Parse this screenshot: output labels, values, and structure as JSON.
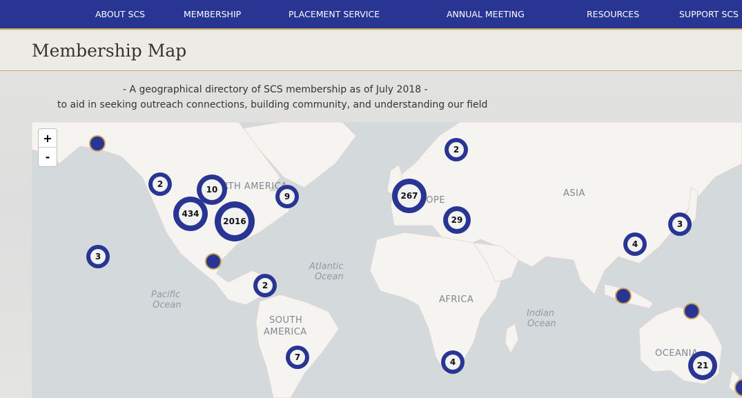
{
  "nav": {
    "items": [
      "ABOUT SCS",
      "MEMBERSHIP",
      "PLACEMENT SERVICE",
      "ANNUAL MEETING",
      "RESOURCES",
      "SUPPORT SCS"
    ]
  },
  "page": {
    "title": "Membership Map",
    "subtitle_line1": "- A geographical directory of SCS membership as of July 2018 -",
    "subtitle_line2": "to aid in seeking outreach connections, building community, and understanding our field"
  },
  "map": {
    "zoom_in": "+",
    "zoom_out": "-",
    "labels": {
      "north_america": "NORTH AMERICA",
      "south_america_1": "SOUTH",
      "south_america_2": "AMERICA",
      "europe": "EUROPE",
      "asia": "ASIA",
      "africa": "AFRICA",
      "oceania": "OCEANIA",
      "atlantic_1": "Atlantic",
      "atlantic_2": "Ocean",
      "pacific_1": "Pacific",
      "pacific_2": "Ocean",
      "indian_1": "Indian",
      "indian_2": "Ocean"
    },
    "clusters": [
      {
        "region": "pacific-northwest",
        "count": "2"
      },
      {
        "region": "midwest-canada",
        "count": "10"
      },
      {
        "region": "western-us",
        "count": "434"
      },
      {
        "region": "eastern-us",
        "count": "2016"
      },
      {
        "region": "atlantic-canada",
        "count": "9"
      },
      {
        "region": "hawaii",
        "count": "3"
      },
      {
        "region": "central-america",
        "count": "2"
      },
      {
        "region": "southern-south-america",
        "count": "7"
      },
      {
        "region": "scandinavia",
        "count": "2"
      },
      {
        "region": "western-europe",
        "count": "267"
      },
      {
        "region": "southeast-europe",
        "count": "29"
      },
      {
        "region": "southern-africa",
        "count": "4"
      },
      {
        "region": "east-asia",
        "count": "4"
      },
      {
        "region": "japan",
        "count": "3"
      },
      {
        "region": "australia",
        "count": "21"
      }
    ],
    "colors": {
      "marker": "#283593",
      "marker_ring": "#c9a45c",
      "land": "#f5f4f1",
      "water": "#d4dadc",
      "nav": "#283593"
    }
  }
}
